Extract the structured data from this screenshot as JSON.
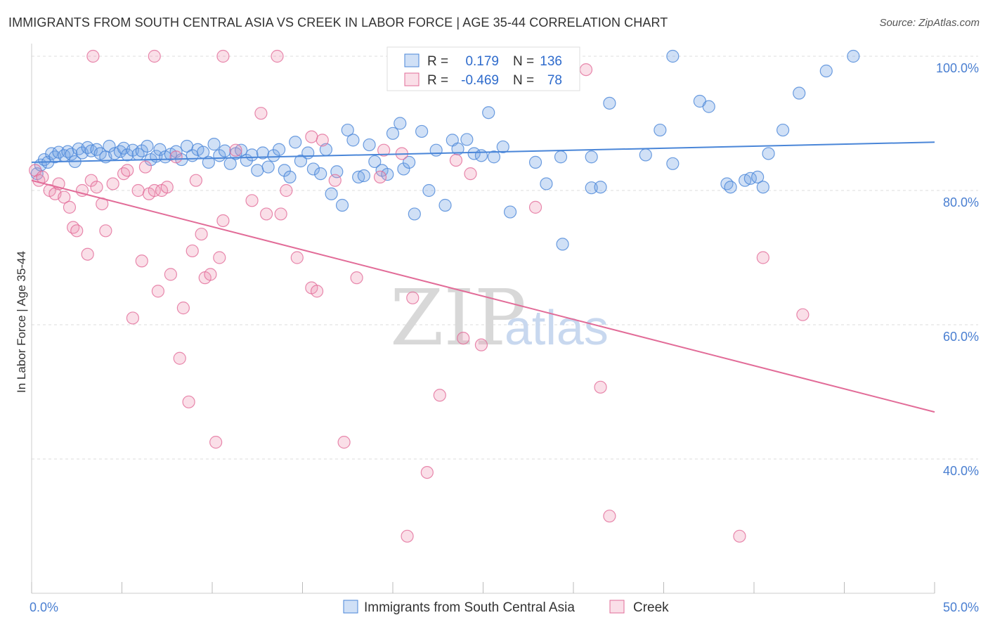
{
  "title": "IMMIGRANTS FROM SOUTH CENTRAL ASIA VS CREEK IN LABOR FORCE | AGE 35-44 CORRELATION CHART",
  "source": "Source: ZipAtlas.com",
  "watermark": {
    "zip": "ZIP",
    "atlas": "atlas"
  },
  "colors": {
    "blue": "#4a86d8",
    "blue_fill": "rgba(120,165,230,0.35)",
    "pink": "#e26c98",
    "pink_fill": "rgba(240,150,180,0.30)",
    "grid": "#dddddd",
    "tick_text": "#4a7fd1"
  },
  "legend": {
    "rows": [
      {
        "r_label": "R =",
        "r_value": "0.179",
        "n_label": "N =",
        "n_value": "136",
        "color": "blue"
      },
      {
        "r_label": "R =",
        "r_value": "-0.469",
        "n_label": "N =",
        "n_value": "78",
        "color": "pink"
      }
    ]
  },
  "bottom_legend": [
    {
      "label": "Immigrants from South Central Asia",
      "color": "blue"
    },
    {
      "label": "Creek",
      "color": "pink"
    }
  ],
  "chart_data": {
    "type": "scatter",
    "ylabel": "In Labor Force | Age 35-44",
    "xlim": [
      0,
      50
    ],
    "ylim": [
      20,
      100
    ],
    "x_tick_labels": [
      {
        "value": 0,
        "label": "0.0%"
      },
      {
        "value": 50,
        "label": "50.0%"
      }
    ],
    "y_tick_labels": [
      {
        "value": 100,
        "label": "100.0%"
      },
      {
        "value": 80,
        "label": "80.0%"
      },
      {
        "value": 60,
        "label": "60.0%"
      },
      {
        "value": 40,
        "label": "40.0%"
      }
    ],
    "grid": true,
    "series": [
      {
        "name": "Immigrants from South Central Asia",
        "color": "blue",
        "trend": [
          [
            0,
            84.2
          ],
          [
            50,
            87.2
          ]
        ],
        "points": [
          [
            0.3,
            82.5
          ],
          [
            0.5,
            83.8
          ],
          [
            0.7,
            84.6
          ],
          [
            0.9,
            84.2
          ],
          [
            1.1,
            85.5
          ],
          [
            1.3,
            85.0
          ],
          [
            1.5,
            85.7
          ],
          [
            1.8,
            85.2
          ],
          [
            2.0,
            85.8
          ],
          [
            2.2,
            85.4
          ],
          [
            2.4,
            84.3
          ],
          [
            2.6,
            86.2
          ],
          [
            2.8,
            85.6
          ],
          [
            3.1,
            86.4
          ],
          [
            3.3,
            85.9
          ],
          [
            3.6,
            86.1
          ],
          [
            3.8,
            85.5
          ],
          [
            4.1,
            85.0
          ],
          [
            4.3,
            86.6
          ],
          [
            4.6,
            85.5
          ],
          [
            4.9,
            85.8
          ],
          [
            5.1,
            86.3
          ],
          [
            5.3,
            85.3
          ],
          [
            5.6,
            86.0
          ],
          [
            5.9,
            85.4
          ],
          [
            6.1,
            85.9
          ],
          [
            6.4,
            86.6
          ],
          [
            6.6,
            84.6
          ],
          [
            6.9,
            85.1
          ],
          [
            7.1,
            86.1
          ],
          [
            7.4,
            85.0
          ],
          [
            7.7,
            85.4
          ],
          [
            8.0,
            85.8
          ],
          [
            8.3,
            84.6
          ],
          [
            8.6,
            86.6
          ],
          [
            8.9,
            85.2
          ],
          [
            9.2,
            86.1
          ],
          [
            9.5,
            85.7
          ],
          [
            9.8,
            84.2
          ],
          [
            10.1,
            86.9
          ],
          [
            10.4,
            85.2
          ],
          [
            10.7,
            85.9
          ],
          [
            11.0,
            84.0
          ],
          [
            11.3,
            85.5
          ],
          [
            11.6,
            86.0
          ],
          [
            11.9,
            84.5
          ],
          [
            12.2,
            85.3
          ],
          [
            12.5,
            83.0
          ],
          [
            12.8,
            85.6
          ],
          [
            13.1,
            83.5
          ],
          [
            13.4,
            85.2
          ],
          [
            13.7,
            86.1
          ],
          [
            14.0,
            83.0
          ],
          [
            14.3,
            82.0
          ],
          [
            14.6,
            87.2
          ],
          [
            14.9,
            84.4
          ],
          [
            15.3,
            85.6
          ],
          [
            15.6,
            83.2
          ],
          [
            16.0,
            82.5
          ],
          [
            16.3,
            86.1
          ],
          [
            16.6,
            79.5
          ],
          [
            16.9,
            82.8
          ],
          [
            17.2,
            77.8
          ],
          [
            17.5,
            89.0
          ],
          [
            17.8,
            87.5
          ],
          [
            18.1,
            82.0
          ],
          [
            18.4,
            82.2
          ],
          [
            18.7,
            86.8
          ],
          [
            19.0,
            84.3
          ],
          [
            19.4,
            83.0
          ],
          [
            19.7,
            82.4
          ],
          [
            20.0,
            88.5
          ],
          [
            20.4,
            90.0
          ],
          [
            20.6,
            83.2
          ],
          [
            20.9,
            84.2
          ],
          [
            21.2,
            76.5
          ],
          [
            21.6,
            88.8
          ],
          [
            22.0,
            80.0
          ],
          [
            22.4,
            86.0
          ],
          [
            22.9,
            77.8
          ],
          [
            23.3,
            87.5
          ],
          [
            23.6,
            86.2
          ],
          [
            24.1,
            87.6
          ],
          [
            24.5,
            85.5
          ],
          [
            24.9,
            85.2
          ],
          [
            25.3,
            91.6
          ],
          [
            25.6,
            85.0
          ],
          [
            26.1,
            86.5
          ],
          [
            26.5,
            76.8
          ],
          [
            27.9,
            84.2
          ],
          [
            28.5,
            81.0
          ],
          [
            29.4,
            72.0
          ],
          [
            29.3,
            85.0
          ],
          [
            31.0,
            80.4
          ],
          [
            31.5,
            80.5
          ],
          [
            31.0,
            85.0
          ],
          [
            32.0,
            93.0
          ],
          [
            34.0,
            85.3
          ],
          [
            34.8,
            89.0
          ],
          [
            35.5,
            84.0
          ],
          [
            35.5,
            100.0
          ],
          [
            37.0,
            93.3
          ],
          [
            37.5,
            92.5
          ],
          [
            38.5,
            81.0
          ],
          [
            38.7,
            80.5
          ],
          [
            39.5,
            81.5
          ],
          [
            39.8,
            81.8
          ],
          [
            40.2,
            82.0
          ],
          [
            40.5,
            80.5
          ],
          [
            40.8,
            85.5
          ],
          [
            41.6,
            89.0
          ],
          [
            42.5,
            94.5
          ],
          [
            44.0,
            97.8
          ],
          [
            45.5,
            100.0
          ]
        ]
      },
      {
        "name": "Creek",
        "color": "pink",
        "trend": [
          [
            0,
            81.5
          ],
          [
            50,
            47.0
          ]
        ],
        "points": [
          [
            0.2,
            83.0
          ],
          [
            0.4,
            81.5
          ],
          [
            0.6,
            82.0
          ],
          [
            1.0,
            80.0
          ],
          [
            1.3,
            79.5
          ],
          [
            1.5,
            81.0
          ],
          [
            1.8,
            79.0
          ],
          [
            2.1,
            77.5
          ],
          [
            2.3,
            74.5
          ],
          [
            2.5,
            74.0
          ],
          [
            2.8,
            80.0
          ],
          [
            3.1,
            70.5
          ],
          [
            3.3,
            81.5
          ],
          [
            3.6,
            80.5
          ],
          [
            3.9,
            78.0
          ],
          [
            4.1,
            74.0
          ],
          [
            4.5,
            81.0
          ],
          [
            5.1,
            82.5
          ],
          [
            5.3,
            83.0
          ],
          [
            5.6,
            61.0
          ],
          [
            5.9,
            80.0
          ],
          [
            6.1,
            69.5
          ],
          [
            6.3,
            83.5
          ],
          [
            6.5,
            79.5
          ],
          [
            6.8,
            80.0
          ],
          [
            7.0,
            65.0
          ],
          [
            7.2,
            80.0
          ],
          [
            7.5,
            80.5
          ],
          [
            7.7,
            67.5
          ],
          [
            8.0,
            85.0
          ],
          [
            8.2,
            55.0
          ],
          [
            8.4,
            62.5
          ],
          [
            8.7,
            48.5
          ],
          [
            8.9,
            71.0
          ],
          [
            9.1,
            81.5
          ],
          [
            9.4,
            73.5
          ],
          [
            9.6,
            67.0
          ],
          [
            9.9,
            67.5
          ],
          [
            10.2,
            42.5
          ],
          [
            10.4,
            70.0
          ],
          [
            10.6,
            75.5
          ],
          [
            11.3,
            86.0
          ],
          [
            12.2,
            78.5
          ],
          [
            12.7,
            91.5
          ],
          [
            13.0,
            76.5
          ],
          [
            13.8,
            76.5
          ],
          [
            14.1,
            80.0
          ],
          [
            14.7,
            70.0
          ],
          [
            15.5,
            65.5
          ],
          [
            15.8,
            65.0
          ],
          [
            16.1,
            87.5
          ],
          [
            16.8,
            81.5
          ],
          [
            17.3,
            42.5
          ],
          [
            18.0,
            67.0
          ],
          [
            19.3,
            82.0
          ],
          [
            20.5,
            85.5
          ],
          [
            21.1,
            64.0
          ],
          [
            21.9,
            38.0
          ],
          [
            22.6,
            49.5
          ],
          [
            23.5,
            84.5
          ],
          [
            23.9,
            58.0
          ],
          [
            24.3,
            82.5
          ],
          [
            24.9,
            57.0
          ],
          [
            27.9,
            77.5
          ],
          [
            30.7,
            98.0
          ],
          [
            31.5,
            50.7
          ],
          [
            32.0,
            31.5
          ],
          [
            40.5,
            70.0
          ],
          [
            42.7,
            61.5
          ],
          [
            3.4,
            100.0
          ],
          [
            6.8,
            100.0
          ],
          [
            10.6,
            100.0
          ],
          [
            13.6,
            100.0
          ],
          [
            15.5,
            88.0
          ],
          [
            19.5,
            86.0
          ],
          [
            20.8,
            28.5
          ],
          [
            39.2,
            28.5
          ]
        ]
      }
    ]
  }
}
